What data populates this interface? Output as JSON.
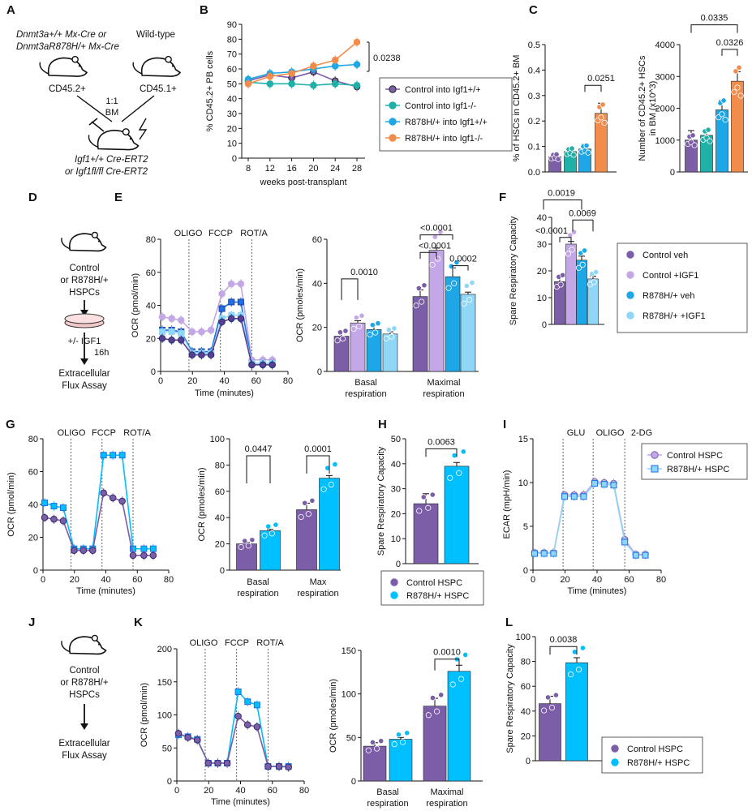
{
  "colors": {
    "ctrl": "#7b5ea7",
    "ctrlIgf": "#c4a7e7",
    "r878": "#1ea7e6",
    "r878Igf": "#8fd6f7",
    "teal": "#1fb0a8",
    "orange": "#f28c4b",
    "dark": "#1f3f9e",
    "sky": "#00bfff"
  },
  "panels": {
    "A": "A",
    "B": "B",
    "C": "C",
    "D": "D",
    "E": "E",
    "F": "F",
    "G": "G",
    "H": "H",
    "I": "I",
    "J": "J",
    "K": "K",
    "L": "L"
  },
  "schematicA": {
    "donor_line1": "Dnmt3a+/+ Mx-Cre or",
    "donor_line2": "Dnmt3aR878H/+ Mx-Cre",
    "wildtype": "Wild-type",
    "cd452": "CD45.2+",
    "cd451": "CD45.1+",
    "ratio": "1:1",
    "bm": "BM",
    "recipient1": "Igf1+/+ Cre-ERT2",
    "recipient2": "or Igf1fl/fl Cre-ERT2"
  },
  "schematicD": {
    "l1": "Control",
    "l2": "or R878H/+",
    "l3": "HSPCs",
    "treat": "+/- IGF1",
    "time": "16h",
    "o1": "Extracellular",
    "o2": "Flux Assay"
  },
  "schematicJ": {
    "l1": "Control",
    "l2": "or R878H/+",
    "l3": "HSPCs",
    "o1": "Extracellular",
    "o2": "Flux Assay"
  },
  "injections": {
    "oligo": "OLIGO",
    "fccp": "FCCP",
    "rota": "ROT/A",
    "glu": "GLU",
    "dg": "2-DG"
  },
  "chart_data": [
    {
      "id": "B",
      "type": "line",
      "title": "",
      "xlabel": "weeks post-transplant",
      "ylabel": "% CD45.2+ PB cells",
      "xlim": [
        8,
        28
      ],
      "ylim": [
        0,
        90
      ],
      "x": [
        8,
        12,
        16,
        20,
        24,
        28
      ],
      "series": [
        {
          "name": "Control into Igf1+/+",
          "values": [
            52,
            56,
            54,
            58,
            52,
            48
          ]
        },
        {
          "name": "Control into Igf1-/-",
          "values": [
            51,
            50,
            50,
            49,
            50,
            49
          ]
        },
        {
          "name": "R878H/+ into Igf1+/+",
          "values": [
            53,
            57,
            58,
            60,
            62,
            63
          ]
        },
        {
          "name": "R878H/+ into Igf1-/-",
          "values": [
            50,
            55,
            57,
            62,
            66,
            78
          ]
        }
      ],
      "annotation": "0.0238"
    },
    {
      "id": "C1",
      "type": "bar",
      "ylabel": "% of HSCs in CD45.2+ BM",
      "ylim": [
        0,
        0.5
      ],
      "yticks": [
        "0.0",
        "0.1",
        "0.2",
        "0.3",
        "0.4",
        "0.5"
      ],
      "values": [
        0.06,
        0.08,
        0.09,
        0.23
      ],
      "annotation": "0.0251"
    },
    {
      "id": "C2",
      "type": "bar",
      "ylabel": "Number of CD45.2+ HSCs in BM (x10^3)",
      "ylim": [
        0,
        4000
      ],
      "yticks": [
        "0",
        "1000",
        "2000",
        "3000",
        "4000"
      ],
      "values": [
        1000,
        1150,
        1950,
        2850
      ],
      "annotations": [
        "0.0335",
        "0.0326"
      ]
    },
    {
      "id": "E1",
      "type": "line",
      "xlabel": "Time (minutes)",
      "ylabel": "OCR (pmol/min)",
      "xlim": [
        0,
        80
      ],
      "ylim": [
        0,
        80
      ],
      "x": [
        0,
        6,
        12,
        19,
        25,
        31,
        38,
        44,
        50,
        57,
        64,
        70
      ],
      "series": [
        {
          "name": "Control +IGF1",
          "values": [
            33,
            32,
            31,
            24,
            24,
            25,
            47,
            53,
            53,
            7,
            7,
            7
          ]
        },
        {
          "name": "R878H/+ veh",
          "values": [
            25,
            25,
            24,
            12,
            12,
            12,
            38,
            42,
            42,
            5,
            5,
            5
          ]
        },
        {
          "name": "R878H/+ +IGF1",
          "values": [
            24,
            24,
            23,
            11,
            11,
            11,
            32,
            34,
            34,
            5,
            5,
            5
          ]
        },
        {
          "name": "Control veh",
          "values": [
            20,
            19,
            19,
            10,
            10,
            10,
            30,
            32,
            32,
            4,
            4,
            4
          ]
        }
      ]
    },
    {
      "id": "E2",
      "type": "bar",
      "ylabel": "OCR (pmoles/min)",
      "ylim": [
        0,
        60
      ],
      "categories": [
        "Basal respiration",
        "Maximal respiration"
      ],
      "series": [
        {
          "name": "Control veh",
          "values": [
            16,
            34
          ]
        },
        {
          "name": "Control +IGF1",
          "values": [
            22,
            55
          ]
        },
        {
          "name": "R878H/+ veh",
          "values": [
            19,
            43
          ]
        },
        {
          "name": "R878H/+ +IGF1",
          "values": [
            17,
            35
          ]
        }
      ],
      "annotations": [
        "0.0010",
        "<0.0001",
        "<0.0001",
        "0.0002"
      ]
    },
    {
      "id": "F",
      "type": "bar",
      "ylabel": "Spare Respiratory Capacity",
      "ylim": [
        0,
        40
      ],
      "yticks": [
        "0",
        "10",
        "20",
        "30",
        "40"
      ],
      "values": [
        16,
        30,
        24,
        17
      ],
      "legend": [
        "Control veh",
        "Control +IGF1",
        "R878H/+ veh",
        "R878H/+ +IGF1"
      ],
      "annotations": [
        "0.0019",
        "0.0069",
        "<0.0001"
      ]
    },
    {
      "id": "G1",
      "type": "line",
      "xlabel": "Time (minutes)",
      "ylabel": "OCR (pmol/min)",
      "xlim": [
        0,
        80
      ],
      "ylim": [
        0,
        80
      ],
      "x": [
        0,
        6,
        12,
        19,
        25,
        31,
        38,
        44,
        50,
        57,
        64,
        70
      ],
      "series": [
        {
          "name": "R878H/+ HSPC",
          "values": [
            41,
            39,
            38,
            13,
            13,
            13,
            70,
            70,
            70,
            13,
            13,
            13
          ]
        },
        {
          "name": "Control HSPC",
          "values": [
            32,
            31,
            30,
            12,
            12,
            12,
            47,
            44,
            42,
            9,
            9,
            9
          ]
        }
      ]
    },
    {
      "id": "G2",
      "type": "bar",
      "ylabel": "OCR (pmoles/min)",
      "ylim": [
        0,
        100
      ],
      "categories": [
        "Basal respiration",
        "Max respiration"
      ],
      "series": [
        {
          "name": "Control HSPC",
          "values": [
            20,
            46
          ]
        },
        {
          "name": "R878H/+ HSPC",
          "values": [
            30,
            70
          ]
        }
      ],
      "annotations": [
        "0.0447",
        "0.0001"
      ]
    },
    {
      "id": "H",
      "type": "bar",
      "ylabel": "Spare Respiratory Capacity",
      "ylim": [
        0,
        50
      ],
      "yticks": [
        "0",
        "10",
        "20",
        "30",
        "40",
        "50"
      ],
      "values": [
        24,
        39
      ],
      "legend": [
        "Control HSPC",
        "R878H/+ HSPC"
      ],
      "annotation": "0.0063"
    },
    {
      "id": "I",
      "type": "line",
      "xlabel": "Time (minutes)",
      "ylabel": "ECAR (mpH/min)",
      "xlim": [
        0,
        80
      ],
      "ylim": [
        0,
        15
      ],
      "x": [
        0,
        6,
        12,
        19,
        25,
        31,
        38,
        44,
        50,
        57,
        64,
        70
      ],
      "series": [
        {
          "name": "Control HSPC",
          "values": [
            2,
            2,
            2,
            8.6,
            8.6,
            8.6,
            10.1,
            10,
            9.9,
            3.5,
            1.8,
            1.8
          ]
        },
        {
          "name": "R878H/+ HSPC",
          "values": [
            1.9,
            1.9,
            1.9,
            8.4,
            8.4,
            8.4,
            9.9,
            9.8,
            9.7,
            3.2,
            1.7,
            1.7
          ]
        }
      ]
    },
    {
      "id": "K1",
      "type": "line",
      "xlabel": "Time (minutes)",
      "ylabel": "OCR (pmol/min)",
      "xlim": [
        0,
        80
      ],
      "ylim": [
        0,
        200
      ],
      "x": [
        0,
        6,
        12,
        19,
        25,
        31,
        38,
        44,
        50,
        57,
        64,
        70
      ],
      "series": [
        {
          "name": "R878H/+ HSPC",
          "values": [
            70,
            67,
            63,
            27,
            27,
            27,
            135,
            120,
            115,
            22,
            22,
            22
          ]
        },
        {
          "name": "Control HSPC",
          "values": [
            72,
            66,
            62,
            27,
            27,
            27,
            98,
            85,
            82,
            22,
            22,
            21
          ]
        }
      ]
    },
    {
      "id": "K2",
      "type": "bar",
      "ylabel": "OCR (pmoles/min)",
      "ylim": [
        0,
        150
      ],
      "categories": [
        "Basal respiration",
        "Maximal respiration"
      ],
      "series": [
        {
          "name": "Control HSPC",
          "values": [
            40,
            86
          ]
        },
        {
          "name": "R878H/+ HSPC",
          "values": [
            48,
            126
          ]
        }
      ],
      "annotation": "0.0010"
    },
    {
      "id": "L",
      "type": "bar",
      "ylabel": "Spare Respiratory Capacity",
      "ylim": [
        0,
        100
      ],
      "yticks": [
        "0",
        "20",
        "40",
        "60",
        "80",
        "100"
      ],
      "values": [
        46,
        79
      ],
      "legend": [
        "Control HSPC",
        "R878H/+ HSPC"
      ],
      "annotation": "0.0038"
    }
  ]
}
